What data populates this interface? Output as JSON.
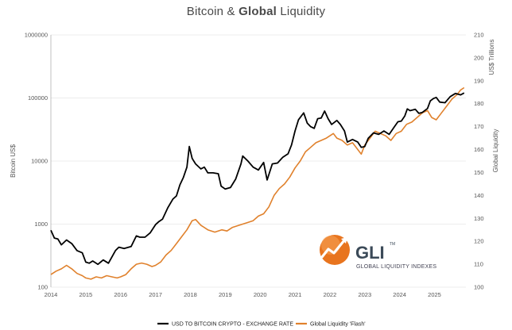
{
  "chart_data": {
    "type": "line",
    "title_plain": "Bitcoin & ",
    "title_bold": "Global",
    "title_rest": " Liquidity",
    "ylabel_left": "Bitcoin US$",
    "ylabel_right_top": "US$ Trillions",
    "ylabel_right": "Global Liquidity",
    "left_axis": {
      "scale": "log",
      "ylim": [
        100,
        1000000
      ],
      "ticks": [
        "100",
        "1000",
        "10000",
        "100000",
        "1000000"
      ]
    },
    "right_axis": {
      "scale": "linear",
      "ylim": [
        100,
        210
      ],
      "ticks": [
        "100",
        "110",
        "120",
        "130",
        "140",
        "150",
        "160",
        "170",
        "180",
        "190",
        "200",
        "210"
      ]
    },
    "x_ticks": [
      "2014",
      "2015",
      "2016",
      "2017",
      "2018",
      "2019",
      "2020",
      "2021",
      "2022",
      "2023",
      "2024",
      "2025"
    ],
    "xlim": [
      2014.0,
      2025.9
    ],
    "grid": "horizontal",
    "series": [
      {
        "name": "USD TO BITCOIN CRYPTO - EXCHANGE RATE",
        "axis": "left",
        "color": "#000000",
        "points": [
          [
            2014.0,
            800
          ],
          [
            2014.1,
            600
          ],
          [
            2014.2,
            580
          ],
          [
            2014.3,
            470
          ],
          [
            2014.45,
            560
          ],
          [
            2014.6,
            490
          ],
          [
            2014.75,
            380
          ],
          [
            2014.9,
            350
          ],
          [
            2015.0,
            250
          ],
          [
            2015.1,
            240
          ],
          [
            2015.2,
            260
          ],
          [
            2015.35,
            230
          ],
          [
            2015.5,
            270
          ],
          [
            2015.65,
            240
          ],
          [
            2015.85,
            380
          ],
          [
            2015.95,
            430
          ],
          [
            2016.1,
            410
          ],
          [
            2016.3,
            440
          ],
          [
            2016.45,
            650
          ],
          [
            2016.55,
            620
          ],
          [
            2016.7,
            620
          ],
          [
            2016.85,
            730
          ],
          [
            2017.0,
            980
          ],
          [
            2017.1,
            1100
          ],
          [
            2017.2,
            1200
          ],
          [
            2017.35,
            1800
          ],
          [
            2017.5,
            2500
          ],
          [
            2017.6,
            2800
          ],
          [
            2017.7,
            4200
          ],
          [
            2017.8,
            5500
          ],
          [
            2017.9,
            8000
          ],
          [
            2017.97,
            17000
          ],
          [
            2018.05,
            11000
          ],
          [
            2018.15,
            9000
          ],
          [
            2018.3,
            7500
          ],
          [
            2018.4,
            8000
          ],
          [
            2018.5,
            6500
          ],
          [
            2018.65,
            6500
          ],
          [
            2018.8,
            6300
          ],
          [
            2018.88,
            4000
          ],
          [
            2019.0,
            3600
          ],
          [
            2019.15,
            3800
          ],
          [
            2019.3,
            5200
          ],
          [
            2019.45,
            9000
          ],
          [
            2019.5,
            12000
          ],
          [
            2019.65,
            10000
          ],
          [
            2019.8,
            8000
          ],
          [
            2019.95,
            7200
          ],
          [
            2020.1,
            9500
          ],
          [
            2020.2,
            5000
          ],
          [
            2020.35,
            9000
          ],
          [
            2020.5,
            9300
          ],
          [
            2020.65,
            11500
          ],
          [
            2020.8,
            13000
          ],
          [
            2020.9,
            18000
          ],
          [
            2021.0,
            30000
          ],
          [
            2021.1,
            45000
          ],
          [
            2021.25,
            58000
          ],
          [
            2021.35,
            40000
          ],
          [
            2021.45,
            35000
          ],
          [
            2021.55,
            33000
          ],
          [
            2021.65,
            47000
          ],
          [
            2021.75,
            48000
          ],
          [
            2021.85,
            62000
          ],
          [
            2021.95,
            47000
          ],
          [
            2022.05,
            38000
          ],
          [
            2022.2,
            44000
          ],
          [
            2022.3,
            38000
          ],
          [
            2022.42,
            30000
          ],
          [
            2022.5,
            20000
          ],
          [
            2022.65,
            22000
          ],
          [
            2022.8,
            20000
          ],
          [
            2022.9,
            16500
          ],
          [
            2023.0,
            17000
          ],
          [
            2023.1,
            23000
          ],
          [
            2023.25,
            28000
          ],
          [
            2023.4,
            26500
          ],
          [
            2023.55,
            30000
          ],
          [
            2023.7,
            26500
          ],
          [
            2023.85,
            35000
          ],
          [
            2023.95,
            42000
          ],
          [
            2024.05,
            43000
          ],
          [
            2024.15,
            52000
          ],
          [
            2024.22,
            67000
          ],
          [
            2024.3,
            63000
          ],
          [
            2024.45,
            66000
          ],
          [
            2024.55,
            57000
          ],
          [
            2024.65,
            59000
          ],
          [
            2024.8,
            68000
          ],
          [
            2024.88,
            90000
          ],
          [
            2024.97,
            98000
          ],
          [
            2025.05,
            102000
          ],
          [
            2025.15,
            86000
          ],
          [
            2025.3,
            84000
          ],
          [
            2025.45,
            105000
          ],
          [
            2025.6,
            118000
          ],
          [
            2025.75,
            112000
          ],
          [
            2025.85,
            120000
          ]
        ]
      },
      {
        "name": "Global Liquidity 'Flash'",
        "axis": "right",
        "color": "#e0812c",
        "points": [
          [
            2014.0,
            105.5
          ],
          [
            2014.15,
            107
          ],
          [
            2014.3,
            108
          ],
          [
            2014.45,
            109.5
          ],
          [
            2014.6,
            108
          ],
          [
            2014.75,
            106
          ],
          [
            2014.9,
            105
          ],
          [
            2015.0,
            104
          ],
          [
            2015.15,
            103.5
          ],
          [
            2015.3,
            104.5
          ],
          [
            2015.45,
            104
          ],
          [
            2015.6,
            105
          ],
          [
            2015.75,
            104.5
          ],
          [
            2015.9,
            104
          ],
          [
            2016.0,
            104.5
          ],
          [
            2016.15,
            105.5
          ],
          [
            2016.3,
            108
          ],
          [
            2016.45,
            110
          ],
          [
            2016.6,
            110.5
          ],
          [
            2016.75,
            110
          ],
          [
            2016.9,
            109
          ],
          [
            2017.0,
            109.5
          ],
          [
            2017.15,
            111
          ],
          [
            2017.3,
            114
          ],
          [
            2017.45,
            116
          ],
          [
            2017.6,
            119
          ],
          [
            2017.75,
            122
          ],
          [
            2017.9,
            125
          ],
          [
            2018.05,
            129
          ],
          [
            2018.15,
            129.5
          ],
          [
            2018.3,
            127
          ],
          [
            2018.5,
            125
          ],
          [
            2018.7,
            124
          ],
          [
            2018.9,
            125
          ],
          [
            2019.05,
            124.5
          ],
          [
            2019.2,
            126
          ],
          [
            2019.4,
            127
          ],
          [
            2019.6,
            128
          ],
          [
            2019.8,
            129
          ],
          [
            2019.95,
            131
          ],
          [
            2020.1,
            132
          ],
          [
            2020.25,
            135
          ],
          [
            2020.4,
            140
          ],
          [
            2020.55,
            143
          ],
          [
            2020.7,
            145
          ],
          [
            2020.85,
            148
          ],
          [
            2021.0,
            152
          ],
          [
            2021.15,
            155
          ],
          [
            2021.3,
            159
          ],
          [
            2021.45,
            161
          ],
          [
            2021.6,
            163
          ],
          [
            2021.75,
            164
          ],
          [
            2021.9,
            165
          ],
          [
            2022.0,
            166
          ],
          [
            2022.1,
            167
          ],
          [
            2022.2,
            165
          ],
          [
            2022.35,
            164
          ],
          [
            2022.5,
            162
          ],
          [
            2022.65,
            163
          ],
          [
            2022.8,
            160
          ],
          [
            2022.9,
            158
          ],
          [
            2023.0,
            162
          ],
          [
            2023.15,
            165
          ],
          [
            2023.3,
            168
          ],
          [
            2023.45,
            167
          ],
          [
            2023.6,
            166
          ],
          [
            2023.75,
            164
          ],
          [
            2023.9,
            167
          ],
          [
            2024.05,
            168
          ],
          [
            2024.2,
            171
          ],
          [
            2024.35,
            172
          ],
          [
            2024.5,
            174
          ],
          [
            2024.65,
            176
          ],
          [
            2024.8,
            177
          ],
          [
            2024.92,
            174
          ],
          [
            2025.05,
            173
          ],
          [
            2025.2,
            176
          ],
          [
            2025.35,
            179
          ],
          [
            2025.5,
            182
          ],
          [
            2025.65,
            184
          ],
          [
            2025.75,
            186
          ],
          [
            2025.85,
            187
          ]
        ]
      }
    ],
    "legend": [
      {
        "label": "USD TO BITCOIN CRYPTO - EXCHANGE RATE",
        "color": "#000000"
      },
      {
        "label": "Global Liquidity 'Flash'",
        "color": "#e0812c"
      }
    ],
    "legend_position": "bottom-center"
  },
  "logo": {
    "name": "GLI",
    "tm": "TM",
    "subtitle": "GLOBAL LIQUIDITY INDEXES"
  }
}
